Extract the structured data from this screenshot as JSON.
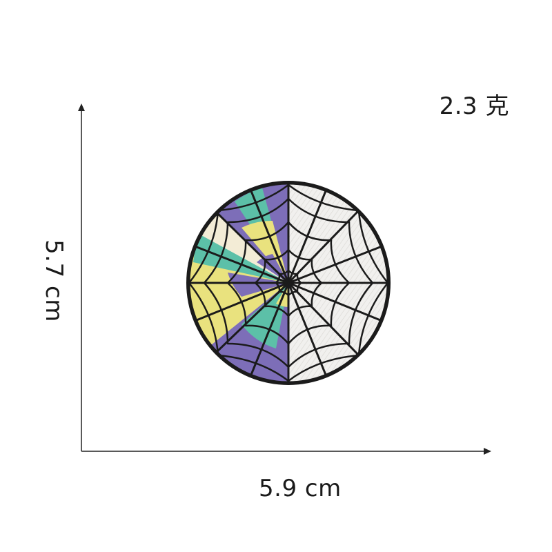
{
  "weight_label": "2.3 克",
  "width_label": "5.9 cm",
  "height_label": "5.7 cm",
  "patch": {
    "subject": "embroidered spider-web patch",
    "colors": {
      "outline": "#1b1b1b",
      "lavender": "#7d6eb8",
      "teal": "#5cc0a8",
      "yellow": "#e9e27e",
      "cream": "#f3ecd6",
      "white": "#f1f0ee"
    }
  },
  "axis_color": "#222222"
}
